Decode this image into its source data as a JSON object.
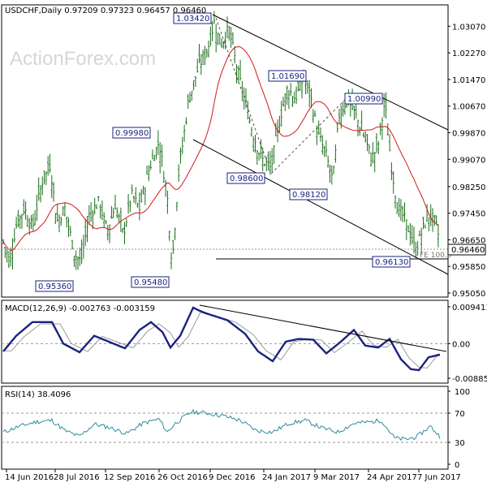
{
  "header": {
    "symbol": "USDCHF,Daily",
    "ohlc": "0.97209 0.97323 0.96457 0.96460"
  },
  "watermark": "ActionForex.com",
  "colors": {
    "background": "#ffffff",
    "price_bars": "#1a6e1a",
    "sma": "#d01818",
    "trendline": "#000000",
    "macd_line": "#1a237e",
    "macd_signal": "#9a9a9a",
    "rsi_line": "#2e8b9e",
    "label_border": "#1a237e",
    "label_text": "#1a237e",
    "axis_text": "#000000",
    "last_price_bg": "#ffffff"
  },
  "chart_data": [
    {
      "type": "line",
      "title": "USDCHF,Daily",
      "panel": "price",
      "ylim": [
        0.9505,
        1.0342
      ],
      "y_ticks": [
        "1.03070",
        "1.02270",
        "1.01470",
        "1.00670",
        "0.99870",
        "0.99070",
        "0.98250",
        "0.97450",
        "0.96650",
        "0.95850",
        "0.95050"
      ],
      "x_ticks": [
        "14 Jun 2016",
        "28 Jul 2016",
        "12 Sep 2016",
        "26 Oct 2016",
        "9 Dec 2016",
        "24 Jan 2017",
        "9 Mar 2017",
        "24 Apr 2017",
        "7 Jun 2017"
      ],
      "last_price": "0.96460",
      "annotations": [
        {
          "text": "1.03420"
        },
        {
          "text": "1.01690"
        },
        {
          "text": "1.00990"
        },
        {
          "text": "0.99980"
        },
        {
          "text": "0.98600"
        },
        {
          "text": "0.98120"
        },
        {
          "text": "0.95360"
        },
        {
          "text": "0.95480"
        },
        {
          "text": "0.96130"
        },
        {
          "text": "FE 100.0"
        }
      ],
      "series": [
        {
          "x": [
            "14 Jun 2016",
            "28 Jul 2016",
            "12 Sep 2016",
            "26 Oct 2016",
            "9 Dec 2016",
            "24 Jan 2017",
            "9 Mar 2017",
            "24 Apr 2017",
            "7 Jun 2017"
          ],
          "values": [
            0.965,
            0.976,
            0.972,
            0.987,
            1.0285,
            0.987,
            1.011,
            1.007,
            0.969
          ]
        },
        {
          "x": [
            "14 Jun 2016",
            "28 Jul 2016",
            "12 Sep 2016",
            "26 Oct 2016",
            "9 Dec 2016",
            "24 Jan 2017",
            "9 Mar 2017",
            "24 Apr 2017",
            "7 Jun 2017"
          ],
          "values": [
            0.9745,
            0.977,
            0.973,
            0.981,
            1.004,
            1.003,
            1.003,
            0.995,
            0.983
          ]
        }
      ]
    },
    {
      "type": "line",
      "title": "MACD(12,26,9) -0.002763 -0.003159",
      "panel": "macd",
      "ylim": [
        -0.00885,
        0.009411
      ],
      "y_ticks": [
        "0.009411",
        "0.00",
        "-0.008852"
      ],
      "series": [
        {
          "x": [
            "14 Jun 2016",
            "28 Jul 2016",
            "12 Sep 2016",
            "26 Oct 2016",
            "9 Dec 2016",
            "24 Jan 2017",
            "9 Mar 2017",
            "24 Apr 2017",
            "7 Jun 2017"
          ],
          "values": [
            -0.002,
            0.006,
            -0.001,
            0.0005,
            0.0095,
            -0.0045,
            0.0015,
            0.0015,
            -0.0028
          ]
        },
        {
          "x": [
            "14 Jun 2016",
            "28 Jul 2016",
            "12 Sep 2016",
            "26 Oct 2016",
            "9 Dec 2016",
            "24 Jan 2017",
            "9 Mar 2017",
            "24 Apr 2017",
            "7 Jun 2017"
          ],
          "values": [
            -0.001,
            0.005,
            0.0,
            0.0,
            0.008,
            -0.003,
            0.001,
            0.0015,
            -0.0032
          ]
        }
      ]
    },
    {
      "type": "line",
      "title": "RSI(14) 38.4096",
      "panel": "rsi",
      "ylim": [
        0,
        100
      ],
      "y_ticks": [
        "100",
        "70",
        "30",
        "0"
      ],
      "series": [
        {
          "x": [
            "14 Jun 2016",
            "28 Jul 2016",
            "12 Sep 2016",
            "26 Oct 2016",
            "9 Dec 2016",
            "24 Jan 2017",
            "9 Mar 2017",
            "24 Apr 2017",
            "7 Jun 2017"
          ],
          "values": [
            45,
            58,
            50,
            55,
            72,
            46,
            60,
            58,
            38
          ]
        }
      ]
    }
  ]
}
